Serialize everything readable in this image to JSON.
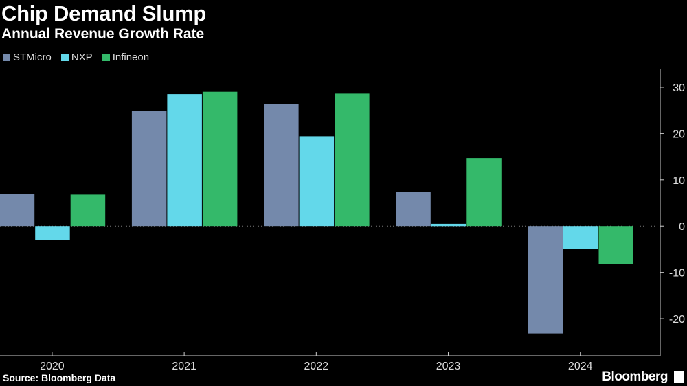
{
  "chart_data": {
    "type": "bar",
    "title": "Chip Demand Slump",
    "subtitle": "Annual Revenue Growth Rate",
    "categories": [
      "2020",
      "2021",
      "2022",
      "2023",
      "2024"
    ],
    "series": [
      {
        "name": "STMicro",
        "color": "#7489ab",
        "values": [
          7.0,
          24.8,
          26.4,
          7.3,
          -23.2
        ]
      },
      {
        "name": "NXP",
        "color": "#63d8ea",
        "values": [
          -3.0,
          28.5,
          19.4,
          0.5,
          -4.9
        ]
      },
      {
        "name": "Infineon",
        "color": "#34b96a",
        "values": [
          6.8,
          29.0,
          28.6,
          14.7,
          -8.2
        ]
      }
    ],
    "ylim": [
      -28,
      34
    ],
    "yticks": [
      30,
      20,
      10,
      0,
      -10,
      -20
    ],
    "ytick_labels": [
      "30",
      "20",
      "10",
      "0",
      "-10",
      "-20"
    ],
    "xlabel": "",
    "ylabel": "",
    "legend_position": "top-left"
  },
  "source": "Source: Bloomberg Data",
  "brand": "Bloomberg"
}
